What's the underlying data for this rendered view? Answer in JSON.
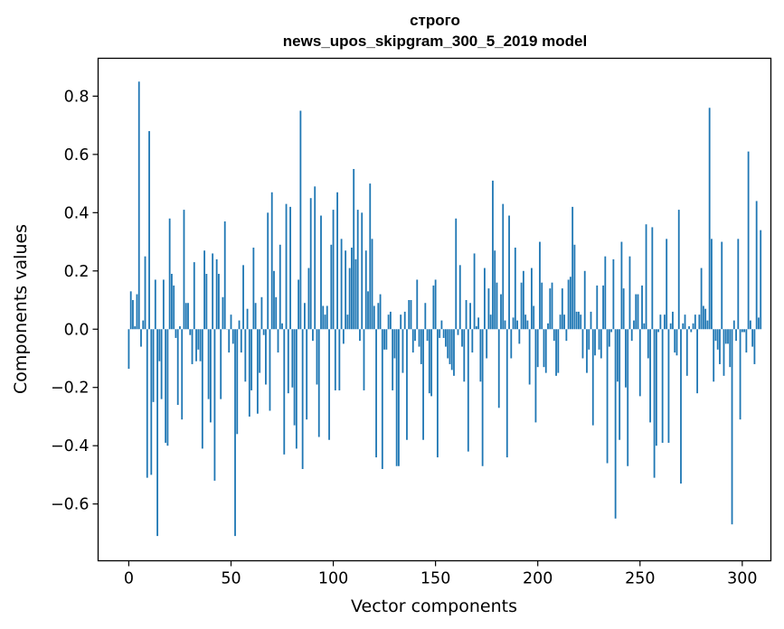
{
  "chart_data": {
    "type": "bar",
    "title": [
      "строго",
      "news_upos_skipgram_300_5_2019 model"
    ],
    "xlabel": "Vector components",
    "ylabel": "Components values",
    "xlim": [
      -15,
      314
    ],
    "ylim": [
      -0.795,
      0.93
    ],
    "xticks": [
      0,
      50,
      100,
      150,
      200,
      250,
      300
    ],
    "yticks": [
      -0.6,
      -0.4,
      -0.2,
      0.0,
      0.2,
      0.4,
      0.6,
      0.8
    ],
    "ytick_labels": [
      "−0.6",
      "−0.4",
      "−0.2",
      "0.0",
      "0.2",
      "0.4",
      "0.6",
      "0.8"
    ],
    "bar_color": "#1f77b4",
    "grid": false,
    "values": [
      -0.136,
      0.13,
      0.1,
      0.01,
      0.12,
      0.85,
      -0.06,
      0.03,
      0.25,
      -0.51,
      0.68,
      -0.5,
      -0.25,
      0.17,
      -0.71,
      -0.11,
      -0.24,
      0.17,
      -0.39,
      -0.4,
      0.38,
      0.19,
      0.15,
      -0.03,
      -0.26,
      0.01,
      -0.31,
      0.41,
      0.09,
      0.09,
      -0.02,
      -0.12,
      0.23,
      -0.11,
      -0.07,
      -0.11,
      -0.41,
      0.27,
      0.19,
      -0.24,
      -0.32,
      0.26,
      -0.52,
      0.24,
      0.19,
      -0.24,
      0.11,
      0.37,
      0.0,
      -0.08,
      0.05,
      -0.05,
      -0.71,
      -0.36,
      0.03,
      -0.08,
      0.22,
      -0.18,
      0.07,
      -0.3,
      -0.21,
      0.28,
      0.09,
      -0.29,
      -0.15,
      0.11,
      -0.02,
      -0.19,
      0.4,
      -0.28,
      0.47,
      0.2,
      0.11,
      -0.08,
      0.29,
      0.02,
      -0.43,
      0.43,
      -0.22,
      0.42,
      -0.2,
      -0.33,
      -0.41,
      0.17,
      0.75,
      -0.48,
      0.09,
      -0.31,
      0.21,
      0.45,
      -0.04,
      0.49,
      -0.19,
      -0.37,
      0.39,
      0.08,
      0.05,
      0.08,
      -0.38,
      0.29,
      0.41,
      -0.21,
      0.47,
      -0.21,
      0.31,
      -0.05,
      0.27,
      0.05,
      0.21,
      0.28,
      0.55,
      0.24,
      0.41,
      -0.04,
      0.4,
      -0.21,
      0.27,
      0.13,
      0.5,
      0.31,
      0.08,
      -0.44,
      0.09,
      0.12,
      -0.48,
      -0.07,
      -0.07,
      0.05,
      0.06,
      -0.21,
      -0.1,
      -0.47,
      -0.47,
      0.05,
      -0.15,
      0.06,
      -0.38,
      0.1,
      0.1,
      -0.08,
      -0.04,
      0.17,
      -0.06,
      -0.12,
      -0.38,
      0.09,
      -0.04,
      -0.22,
      -0.23,
      0.15,
      0.17,
      -0.44,
      -0.03,
      0.03,
      -0.03,
      -0.06,
      -0.1,
      -0.12,
      -0.14,
      -0.16,
      0.38,
      -0.02,
      0.22,
      -0.06,
      -0.18,
      0.1,
      -0.42,
      0.09,
      -0.08,
      0.26,
      0.01,
      0.04,
      -0.18,
      -0.47,
      0.21,
      -0.1,
      0.14,
      0.05,
      0.51,
      0.27,
      0.16,
      -0.27,
      0.12,
      0.43,
      0.03,
      -0.44,
      0.39,
      -0.1,
      0.04,
      0.28,
      0.03,
      -0.05,
      0.16,
      0.2,
      0.05,
      0.03,
      -0.19,
      0.21,
      0.08,
      -0.32,
      -0.13,
      0.3,
      0.16,
      -0.13,
      -0.15,
      0.02,
      0.14,
      0.16,
      -0.04,
      -0.16,
      -0.15,
      0.05,
      0.14,
      0.05,
      -0.04,
      0.17,
      0.18,
      0.42,
      0.29,
      0.06,
      0.06,
      0.05,
      -0.1,
      0.2,
      -0.15,
      -0.07,
      0.06,
      -0.33,
      -0.09,
      0.15,
      -0.07,
      -0.1,
      0.15,
      0.25,
      -0.46,
      -0.06,
      -0.01,
      0.24,
      -0.65,
      -0.18,
      -0.38,
      0.3,
      0.14,
      -0.2,
      -0.47,
      0.25,
      -0.04,
      0.03,
      0.12,
      0.12,
      -0.23,
      0.15,
      0.02,
      0.36,
      -0.1,
      -0.32,
      0.35,
      -0.51,
      -0.4,
      -0.01,
      0.05,
      -0.39,
      0.05,
      0.31,
      -0.39,
      0.02,
      0.06,
      -0.08,
      -0.09,
      0.41,
      -0.53,
      0.02,
      0.05,
      -0.16,
      0.01,
      -0.01,
      0.02,
      0.05,
      -0.22,
      0.05,
      0.21,
      0.08,
      0.07,
      0.03,
      0.76,
      0.31,
      -0.18,
      -0.04,
      -0.07,
      -0.12,
      0.3,
      -0.16,
      -0.05,
      -0.05,
      -0.13,
      -0.67,
      0.03,
      -0.04,
      0.31,
      -0.31,
      -0.01,
      -0.01,
      -0.08,
      0.61,
      0.03,
      -0.06,
      -0.12,
      0.44,
      0.04,
      0.34
    ]
  }
}
